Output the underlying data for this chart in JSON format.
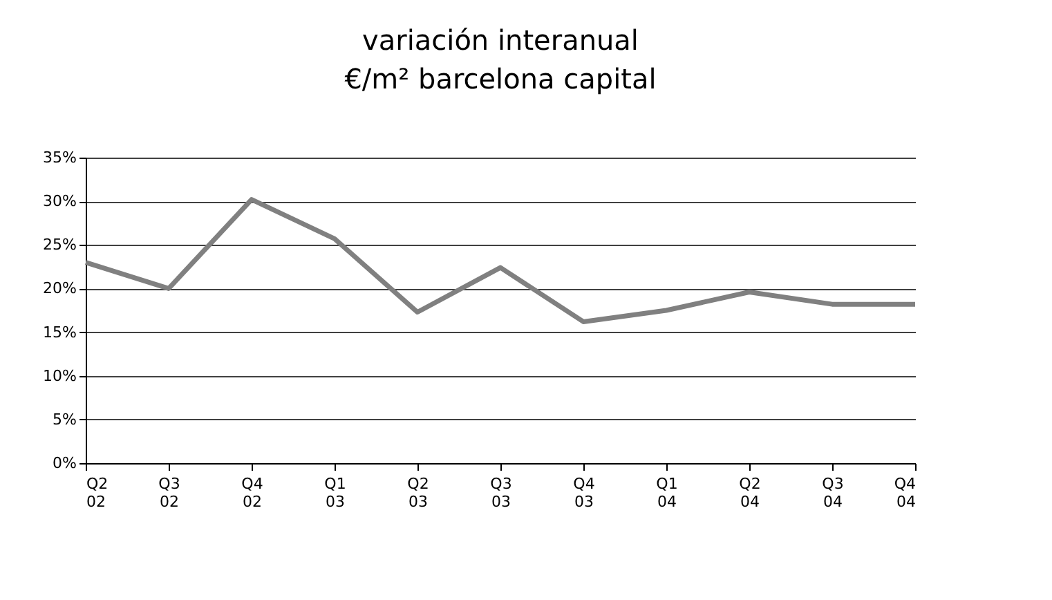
{
  "chart_data": {
    "type": "line",
    "title": "variación interanual",
    "subtitle": "€/m² barcelona capital",
    "categories": [
      "Q2 02",
      "Q3 02",
      "Q4 02",
      "Q1 03",
      "Q2 03",
      "Q3 03",
      "Q4 03",
      "Q1 04",
      "Q2 04",
      "Q3 04",
      "Q4 04"
    ],
    "series": [
      {
        "color": "#808080",
        "values": [
          23,
          20,
          30.2,
          25.7,
          17.3,
          22.4,
          16.2,
          17.5,
          19.6,
          18.2,
          18.2
        ]
      }
    ],
    "ylim": [
      0,
      35
    ],
    "yticks": [
      {
        "value": 0,
        "label": "0%"
      },
      {
        "value": 5,
        "label": "5%"
      },
      {
        "value": 10,
        "label": "10%"
      },
      {
        "value": 15,
        "label": "15%"
      },
      {
        "value": 20,
        "label": "20%"
      },
      {
        "value": 25,
        "label": "25%"
      },
      {
        "value": 30,
        "label": "30%"
      },
      {
        "value": 35,
        "label": "35%"
      }
    ],
    "grid": "y",
    "legend": false,
    "marker": "none",
    "line_style": "solid"
  }
}
